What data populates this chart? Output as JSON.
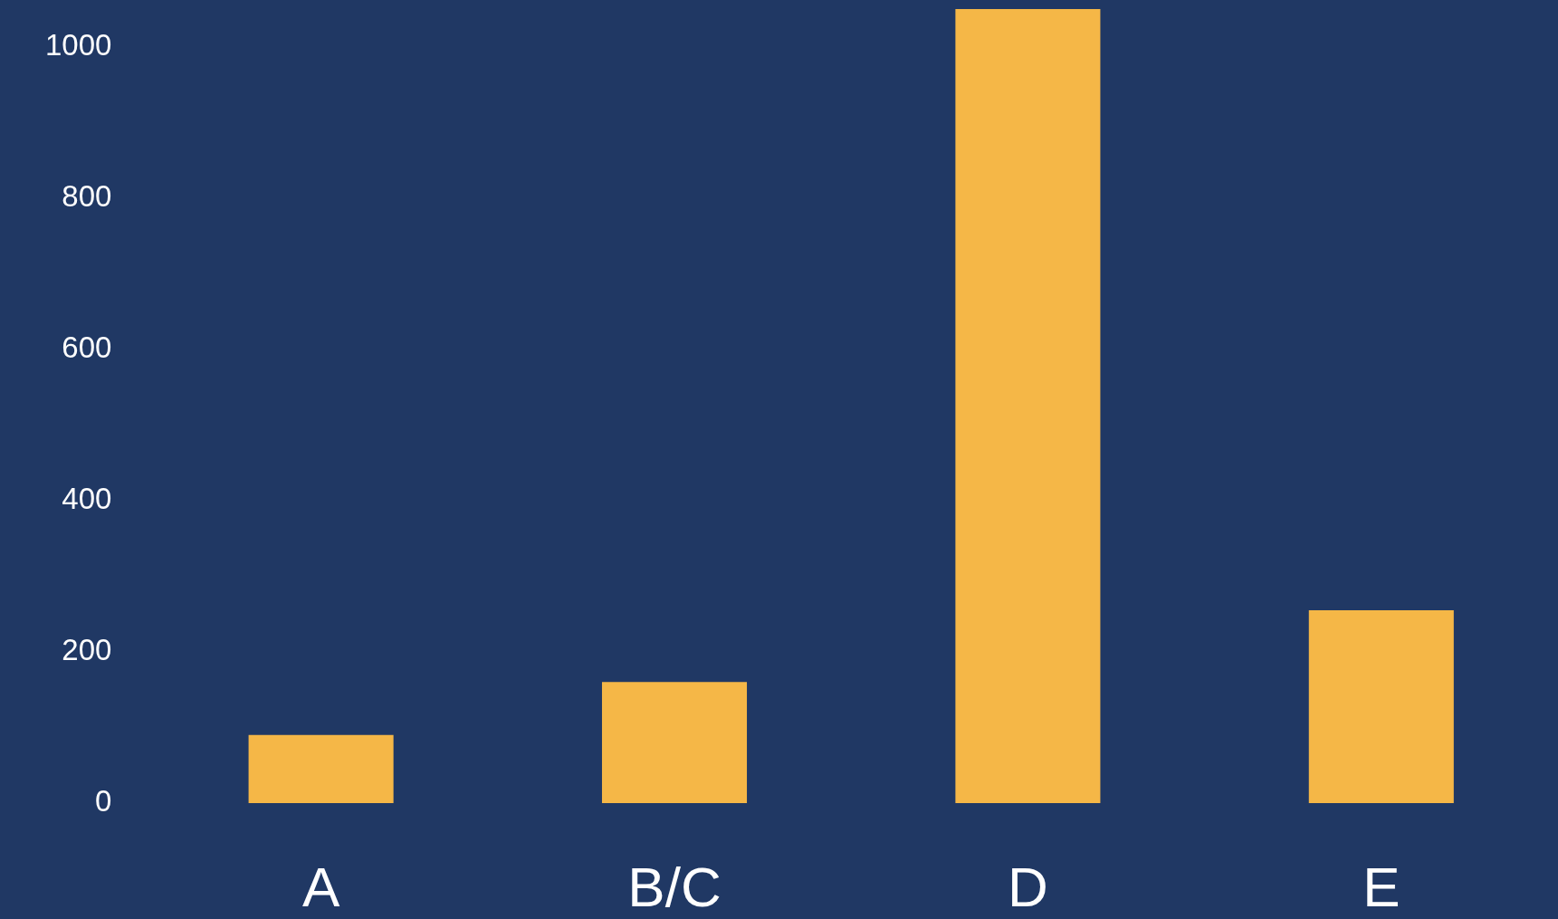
{
  "chart_data": {
    "type": "bar",
    "categories": [
      "A",
      "B/C",
      "D",
      "E"
    ],
    "values": [
      90,
      160,
      1050,
      255
    ],
    "color": "#f5b747",
    "ylim": [
      0,
      1050
    ],
    "yticks": [
      0,
      200,
      400,
      600,
      800,
      1000
    ]
  }
}
